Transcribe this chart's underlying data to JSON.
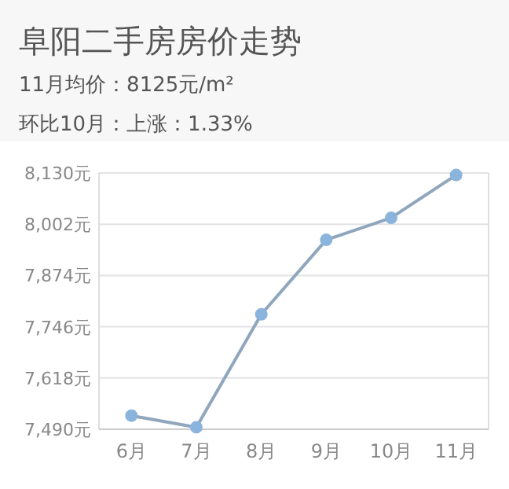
{
  "chart_data": {
    "type": "line",
    "title": "阜阳二手房房价走势",
    "annotations": [
      "11月均价：8125元/m²",
      "环比10月：上涨：1.33%"
    ],
    "categories": [
      "6月",
      "7月",
      "8月",
      "9月",
      "10月",
      "11月"
    ],
    "series": [
      {
        "color": "#8ab4dc",
        "values": [
          7524,
          7495,
          7777,
          7963,
          8018,
          8125
        ]
      }
    ],
    "ylim": [
      7490,
      8130
    ],
    "yticks": [
      {
        "value": 7490,
        "label": "7,490元"
      },
      {
        "value": 7618,
        "label": "7,618元"
      },
      {
        "value": 7746,
        "label": "7,746元"
      },
      {
        "value": 7874,
        "label": "7,874元"
      },
      {
        "value": 8002,
        "label": "8,002元"
      },
      {
        "value": 8130,
        "label": "8,130元"
      }
    ],
    "grid": "y",
    "marker": "circle",
    "line_style": "solid"
  }
}
